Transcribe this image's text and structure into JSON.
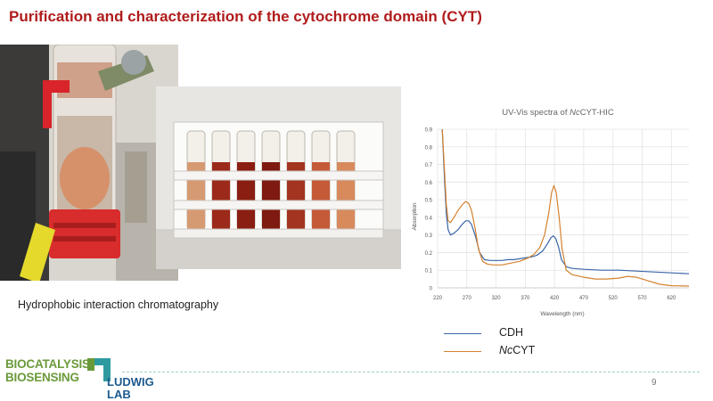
{
  "slide": {
    "title": "Purification and characterization of the cytochrome domain (CYT)",
    "caption": "Hydrophobic interaction chromatography",
    "page_number": "9"
  },
  "logo": {
    "line1": "BIOCATALYSIS",
    "line2": "BIOSENSING",
    "line3": "LUDWIG",
    "line4": "LAB",
    "colors": {
      "green": "#6b9a3a",
      "blue": "#1e5a8e",
      "teal": "#2e9aa0"
    }
  },
  "photos": {
    "column": {
      "description_icon": "chromatography-column-photo"
    },
    "rack": {
      "description_icon": "fraction-tube-rack-photo"
    }
  },
  "chart_data": {
    "type": "line",
    "title_prefix": "UV-Vis spectra of ",
    "title_emph": "Nc",
    "title_suffix": "CYT-HIC",
    "xlabel": "Wavelength (nm)",
    "ylabel": "Absorption",
    "xlim": [
      220,
      650
    ],
    "ylim": [
      0,
      0.9
    ],
    "xticks": [
      220,
      270,
      320,
      370,
      420,
      470,
      520,
      570,
      620
    ],
    "yticks": [
      0,
      0.1,
      0.2,
      0.3,
      0.4,
      0.5,
      0.6,
      0.7,
      0.8,
      0.9
    ],
    "grid": true,
    "legend_position": "bottom-left",
    "series": [
      {
        "name": "CDH",
        "color": "#3a66a8",
        "points": [
          [
            228,
            0.9
          ],
          [
            232,
            0.6
          ],
          [
            235,
            0.42
          ],
          [
            238,
            0.33
          ],
          [
            242,
            0.3
          ],
          [
            248,
            0.31
          ],
          [
            255,
            0.33
          ],
          [
            262,
            0.36
          ],
          [
            268,
            0.38
          ],
          [
            273,
            0.38
          ],
          [
            278,
            0.36
          ],
          [
            285,
            0.29
          ],
          [
            292,
            0.2
          ],
          [
            300,
            0.16
          ],
          [
            310,
            0.155
          ],
          [
            320,
            0.155
          ],
          [
            330,
            0.155
          ],
          [
            340,
            0.16
          ],
          [
            350,
            0.16
          ],
          [
            360,
            0.165
          ],
          [
            370,
            0.17
          ],
          [
            380,
            0.175
          ],
          [
            390,
            0.185
          ],
          [
            400,
            0.21
          ],
          [
            408,
            0.25
          ],
          [
            414,
            0.285
          ],
          [
            418,
            0.295
          ],
          [
            422,
            0.28
          ],
          [
            427,
            0.23
          ],
          [
            432,
            0.16
          ],
          [
            440,
            0.12
          ],
          [
            450,
            0.11
          ],
          [
            470,
            0.105
          ],
          [
            500,
            0.1
          ],
          [
            530,
            0.1
          ],
          [
            560,
            0.095
          ],
          [
            590,
            0.09
          ],
          [
            620,
            0.085
          ],
          [
            650,
            0.08
          ]
        ]
      },
      {
        "name": "NcCYT",
        "name_emph": "Nc",
        "name_rest": "CYT",
        "color": "#d4822e",
        "points": [
          [
            228,
            0.9
          ],
          [
            232,
            0.65
          ],
          [
            235,
            0.47
          ],
          [
            238,
            0.38
          ],
          [
            242,
            0.37
          ],
          [
            248,
            0.4
          ],
          [
            255,
            0.44
          ],
          [
            262,
            0.47
          ],
          [
            268,
            0.49
          ],
          [
            273,
            0.48
          ],
          [
            278,
            0.44
          ],
          [
            284,
            0.34
          ],
          [
            290,
            0.22
          ],
          [
            297,
            0.15
          ],
          [
            305,
            0.135
          ],
          [
            315,
            0.13
          ],
          [
            330,
            0.13
          ],
          [
            345,
            0.14
          ],
          [
            360,
            0.15
          ],
          [
            375,
            0.17
          ],
          [
            385,
            0.19
          ],
          [
            395,
            0.23
          ],
          [
            403,
            0.3
          ],
          [
            410,
            0.42
          ],
          [
            415,
            0.54
          ],
          [
            419,
            0.58
          ],
          [
            423,
            0.54
          ],
          [
            428,
            0.4
          ],
          [
            433,
            0.22
          ],
          [
            440,
            0.1
          ],
          [
            450,
            0.075
          ],
          [
            470,
            0.06
          ],
          [
            490,
            0.05
          ],
          [
            510,
            0.05
          ],
          [
            530,
            0.055
          ],
          [
            545,
            0.065
          ],
          [
            560,
            0.06
          ],
          [
            580,
            0.04
          ],
          [
            600,
            0.02
          ],
          [
            620,
            0.012
          ],
          [
            650,
            0.01
          ]
        ]
      }
    ]
  }
}
